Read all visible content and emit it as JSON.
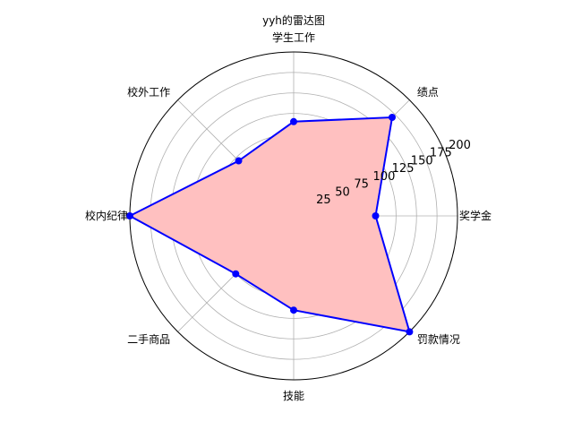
{
  "chart_data": {
    "type": "radar",
    "title": "yyh的雷达图",
    "categories": [
      "奖学金",
      "绩点",
      "学生工作",
      "校外工作",
      "校内纪律",
      "二手商品",
      "技能",
      "罚款情况"
    ],
    "values": [
      100,
      170,
      115,
      95,
      200,
      100,
      115,
      200
    ],
    "rmax": 200,
    "rticks": [
      25,
      50,
      75,
      100,
      125,
      150,
      175,
      200
    ],
    "grid": true,
    "series_color": "#0000ff",
    "fill_color": "#ffc0c0",
    "grid_color": "#b0b0b0"
  }
}
